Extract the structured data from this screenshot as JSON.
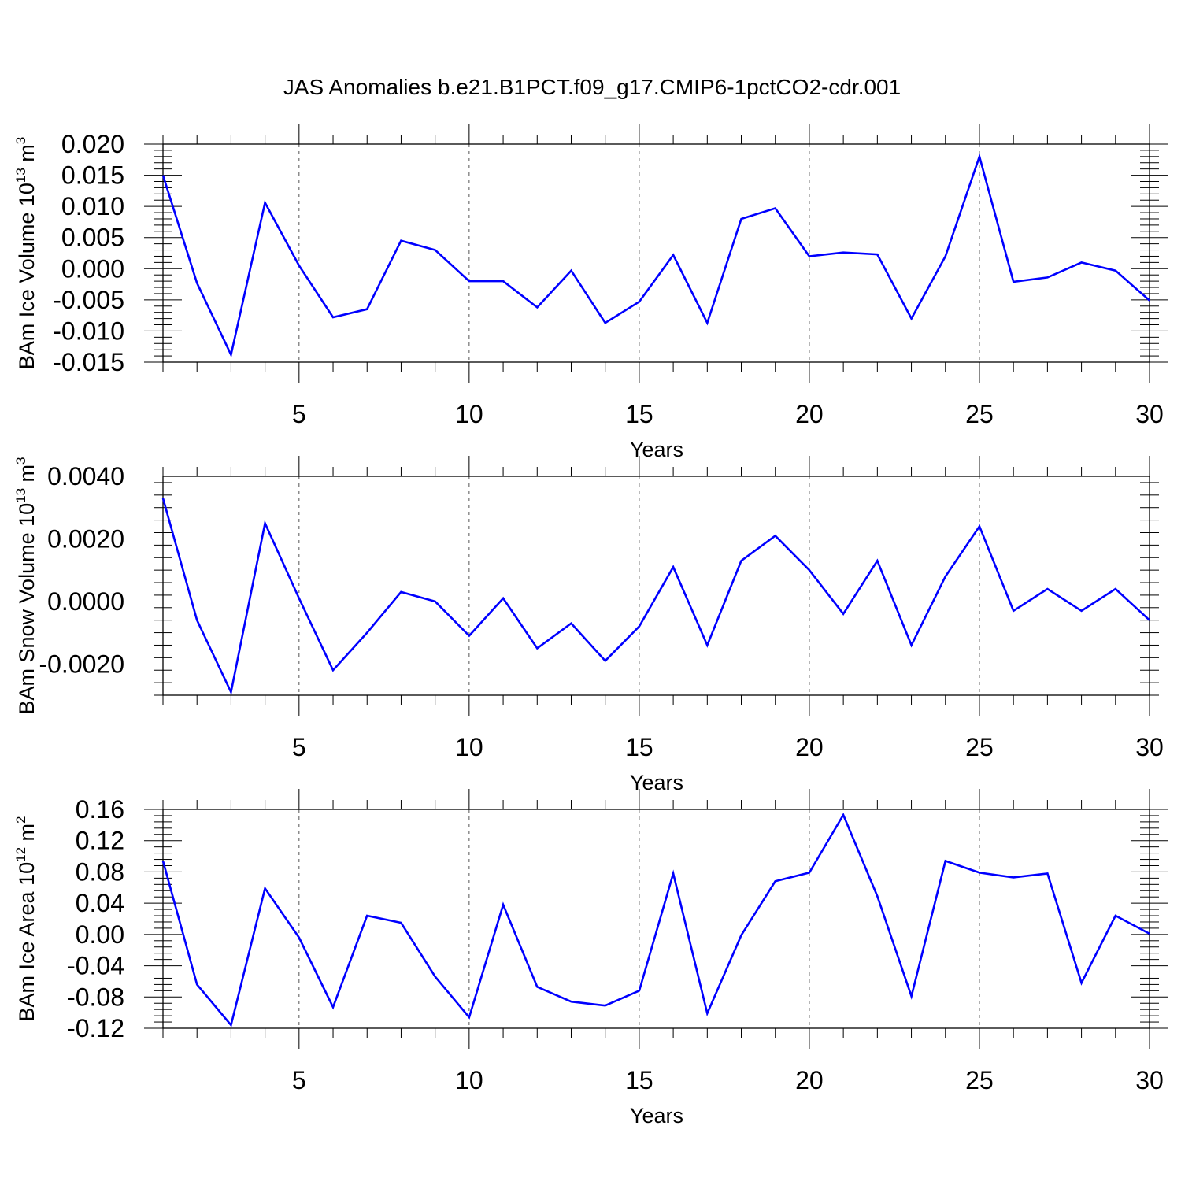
{
  "title": "JAS Anomalies b.e21.B1PCT.f09_g17.CMIP6-1pctCO2-cdr.001",
  "colors": {
    "line": "#0000ff",
    "axis": "#000000",
    "grid": "#555555"
  },
  "chart_data": [
    {
      "type": "line",
      "xlabel": "Years",
      "ylabel": {
        "text": "BAm Ice Volume 10",
        "sup": "13",
        "unit": " m",
        "unit_sup": "3"
      },
      "xlim": [
        1,
        30
      ],
      "ylim": [
        -0.015,
        0.02
      ],
      "xticks": [
        5,
        10,
        15,
        20,
        25,
        30
      ],
      "yticks": [
        "0.020",
        "0.015",
        "0.010",
        "0.005",
        "0.000",
        "-0.005",
        "-0.010",
        "-0.015"
      ],
      "x": [
        1,
        2,
        3,
        4,
        5,
        6,
        7,
        8,
        9,
        10,
        11,
        12,
        13,
        14,
        15,
        16,
        17,
        18,
        19,
        20,
        21,
        22,
        23,
        24,
        25,
        26,
        27,
        28,
        29,
        30
      ],
      "series": [
        {
          "values": [
            0.015,
            -0.0023,
            -0.0138,
            0.0106,
            0.0005,
            -0.0078,
            -0.0065,
            0.0045,
            0.003,
            -0.002,
            -0.002,
            -0.0062,
            -0.0003,
            -0.0087,
            -0.0053,
            0.0022,
            -0.0087,
            0.008,
            0.0097,
            0.002,
            0.0026,
            0.0023,
            -0.008,
            0.002,
            0.018,
            -0.0021,
            -0.0014,
            0.001,
            -0.0003,
            -0.0051
          ]
        }
      ],
      "grid_x": "dashed at major ticks"
    },
    {
      "type": "line",
      "xlabel": "Years",
      "ylabel": {
        "text": "BAm Snow Volume 10",
        "sup": "13",
        "unit": " m",
        "unit_sup": "3"
      },
      "xlim": [
        1,
        30
      ],
      "ylim": [
        -0.003,
        0.004
      ],
      "xticks": [
        5,
        10,
        15,
        20,
        25,
        30
      ],
      "yticks": [
        "0.0040",
        "0.0020",
        "0.0000",
        "-0.0020"
      ],
      "x": [
        1,
        2,
        3,
        4,
        5,
        6,
        7,
        8,
        9,
        10,
        11,
        12,
        13,
        14,
        15,
        16,
        17,
        18,
        19,
        20,
        21,
        22,
        23,
        24,
        25,
        26,
        27,
        28,
        29,
        30
      ],
      "series": [
        {
          "values": [
            0.0033,
            -0.0006,
            -0.0029,
            0.0025,
            0.0001,
            -0.0022,
            -0.001,
            0.0003,
            0.0,
            -0.0011,
            0.0001,
            -0.0015,
            -0.0007,
            -0.0019,
            -0.0008,
            0.0011,
            -0.0014,
            0.0013,
            0.0021,
            0.001,
            -0.0004,
            0.0013,
            -0.0014,
            0.0008,
            0.0024,
            -0.0003,
            0.0004,
            -0.0003,
            0.0004,
            -0.0006
          ]
        }
      ],
      "grid_x": "dashed at major ticks"
    },
    {
      "type": "line",
      "xlabel": "Years",
      "ylabel": {
        "text": "BAm Ice Area 10",
        "sup": "12",
        "unit": " m",
        "unit_sup": "2"
      },
      "xlim": [
        1,
        30
      ],
      "ylim": [
        -0.12,
        0.16
      ],
      "xticks": [
        5,
        10,
        15,
        20,
        25,
        30
      ],
      "yticks": [
        "0.16",
        "0.12",
        "0.08",
        "0.04",
        "0.00",
        "-0.04",
        "-0.08",
        "-0.12"
      ],
      "x": [
        1,
        2,
        3,
        4,
        5,
        6,
        7,
        8,
        9,
        10,
        11,
        12,
        13,
        14,
        15,
        16,
        17,
        18,
        19,
        20,
        21,
        22,
        23,
        24,
        25,
        26,
        27,
        28,
        29,
        30
      ],
      "series": [
        {
          "values": [
            0.094,
            -0.064,
            -0.116,
            0.059,
            -0.004,
            -0.093,
            0.024,
            0.015,
            -0.054,
            -0.106,
            0.038,
            -0.067,
            -0.086,
            -0.091,
            -0.072,
            0.078,
            -0.101,
            -0.001,
            0.068,
            0.079,
            0.153,
            0.049,
            -0.079,
            0.094,
            0.079,
            0.073,
            0.078,
            -0.062,
            0.024,
            0.001
          ]
        }
      ],
      "grid_x": "dashed at major ticks"
    }
  ]
}
